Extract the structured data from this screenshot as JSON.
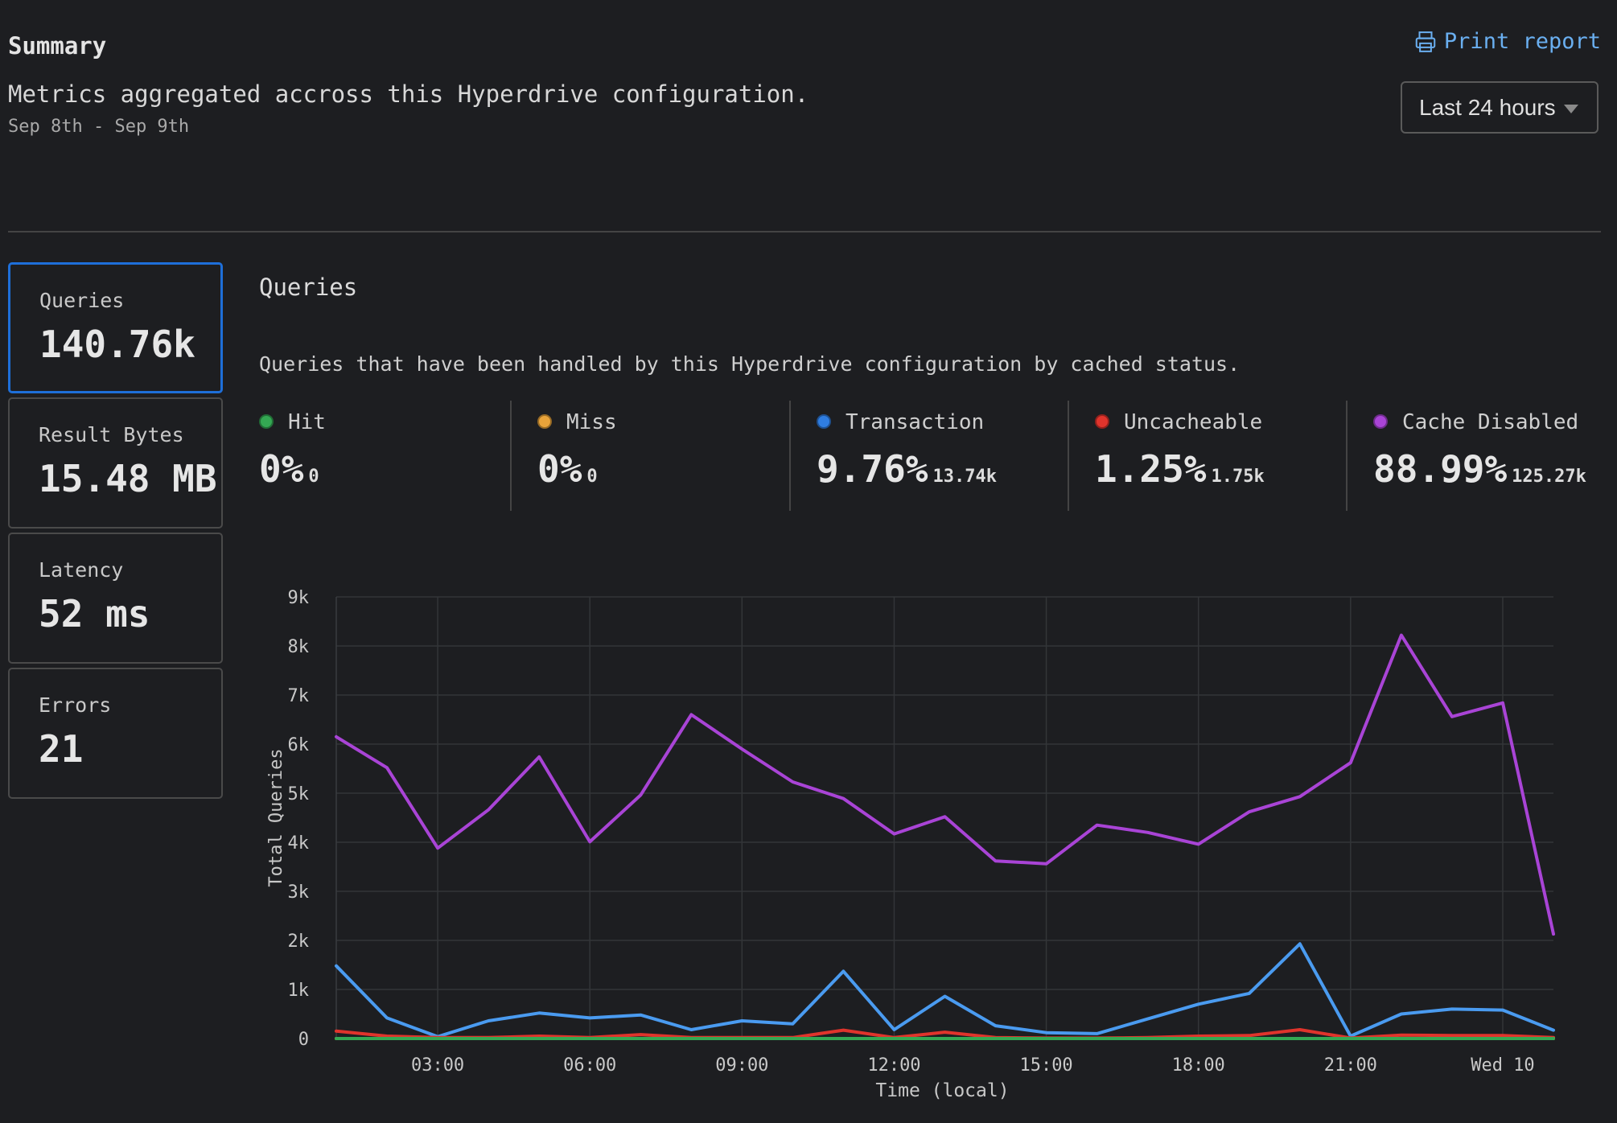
{
  "header": {
    "title": "Summary",
    "description": "Metrics aggregated accross this Hyperdrive configuration.",
    "date_range": "Sep 8th - Sep 9th",
    "print_label": "Print report",
    "range_select": "Last 24 hours"
  },
  "metrics": [
    {
      "label": "Queries",
      "value": "140.76k"
    },
    {
      "label": "Result Bytes",
      "value": "15.48 MB"
    },
    {
      "label": "Latency",
      "value": "52 ms"
    },
    {
      "label": "Errors",
      "value": "21"
    }
  ],
  "queries": {
    "title": "Queries",
    "description": "Queries that have been handled by this Hyperdrive configuration by cached status.",
    "legend": [
      {
        "name": "Hit",
        "percent": "0%",
        "count": "0",
        "color": "#34a853"
      },
      {
        "name": "Miss",
        "percent": "0%",
        "count": "0",
        "color": "#e8a33a"
      },
      {
        "name": "Transaction",
        "percent": "9.76%",
        "count": "13.74k",
        "color": "#2f7de1"
      },
      {
        "name": "Uncacheable",
        "percent": "1.25%",
        "count": "1.75k",
        "color": "#e0342c"
      },
      {
        "name": "Cache Disabled",
        "percent": "88.99%",
        "count": "125.27k",
        "color": "#a944d6"
      }
    ]
  },
  "chart_data": {
    "type": "line",
    "ylabel": "Total Queries",
    "xlabel": "Time (local)",
    "ylim": [
      0,
      9000
    ],
    "y_ticks": [
      "0",
      "1k",
      "2k",
      "3k",
      "4k",
      "5k",
      "6k",
      "7k",
      "8k",
      "9k"
    ],
    "x_ticks": [
      "03:00",
      "06:00",
      "09:00",
      "12:00",
      "15:00",
      "18:00",
      "21:00",
      "Wed 10"
    ],
    "x": [
      "01:00",
      "02:00",
      "03:00",
      "04:00",
      "05:00",
      "06:00",
      "07:00",
      "08:00",
      "09:00",
      "10:00",
      "11:00",
      "12:00",
      "13:00",
      "14:00",
      "15:00",
      "16:00",
      "17:00",
      "18:00",
      "19:00",
      "20:00",
      "21:00",
      "22:00",
      "23:00",
      "00:00",
      "01:00"
    ],
    "grid": true,
    "series": [
      {
        "name": "Cache Disabled",
        "color": "#a944d6",
        "values": [
          6150,
          5520,
          3880,
          4660,
          5740,
          4010,
          4960,
          6600,
          5900,
          5230,
          4890,
          4170,
          4520,
          3620,
          3560,
          4350,
          4200,
          3960,
          4620,
          4930,
          5620,
          8220,
          6560,
          6840,
          2130
        ]
      },
      {
        "name": "Transaction",
        "color": "#4a9bf0",
        "values": [
          1480,
          420,
          40,
          360,
          520,
          420,
          480,
          180,
          360,
          300,
          1370,
          180,
          860,
          260,
          120,
          100,
          400,
          700,
          920,
          1930,
          50,
          500,
          600,
          580,
          170
        ]
      },
      {
        "name": "Uncacheable",
        "color": "#e0342c",
        "values": [
          150,
          50,
          20,
          20,
          50,
          20,
          80,
          20,
          20,
          20,
          170,
          20,
          130,
          20,
          10,
          10,
          20,
          50,
          60,
          180,
          10,
          70,
          60,
          60,
          20
        ]
      },
      {
        "name": "Miss",
        "color": "#e8a33a",
        "values": [
          0,
          0,
          0,
          0,
          0,
          0,
          0,
          0,
          0,
          0,
          0,
          0,
          0,
          0,
          0,
          0,
          0,
          0,
          0,
          0,
          0,
          0,
          0,
          0,
          0
        ]
      },
      {
        "name": "Hit",
        "color": "#34a853",
        "values": [
          0,
          0,
          0,
          0,
          0,
          0,
          0,
          0,
          0,
          0,
          0,
          0,
          0,
          0,
          0,
          0,
          0,
          0,
          0,
          0,
          0,
          0,
          0,
          0,
          0
        ]
      }
    ]
  }
}
